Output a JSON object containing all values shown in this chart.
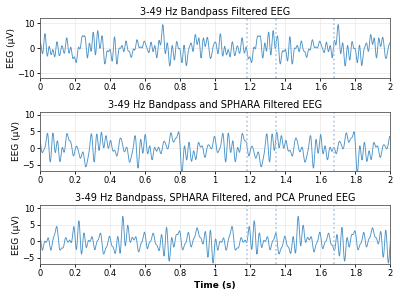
{
  "title1": "3-49 Hz Bandpass Filtered EEG",
  "title2": "3-49 Hz Bandpass and SPHARA Filtered EEG",
  "title3": "3-49 Hz Bandpass, SPHARA Filtered, and PCA Pruned EEG",
  "xlabel": "Time (s)",
  "ylabel": "EEG (µV)",
  "xlim": [
    0,
    2
  ],
  "ylim1": [
    -12,
    12
  ],
  "ylim2": [
    -7,
    11
  ],
  "ylim3": [
    -7,
    11
  ],
  "yticks1": [
    -10,
    0,
    10
  ],
  "yticks2": [
    -5,
    0,
    5,
    10
  ],
  "yticks3": [
    -5,
    0,
    5,
    10
  ],
  "xticks": [
    0,
    0.2,
    0.4,
    0.6,
    0.8,
    1.0,
    1.2,
    1.4,
    1.6,
    1.8,
    2.0
  ],
  "xtick_labels": [
    "0",
    "0.2",
    "0.4",
    "0.6",
    "0.8",
    "1",
    "1.2",
    "1.4",
    "1.6",
    "1.8",
    "2"
  ],
  "vlines": [
    1.18,
    1.35,
    1.68
  ],
  "line_color": "#4d94c8",
  "vline_color": "#aec6e0",
  "background_color": "#ffffff",
  "grid_color": "#e8e8e8",
  "title_fontsize": 7.0,
  "label_fontsize": 6.5,
  "tick_fontsize": 6.0
}
